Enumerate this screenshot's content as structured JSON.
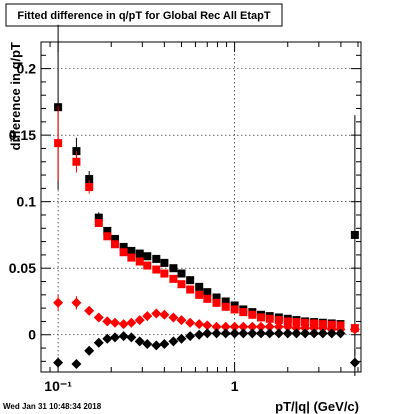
{
  "chart_data": {
    "type": "scatter",
    "title": "Fitted difference in q/pT for Global Rec All EtapT",
    "xlabel": "pT/|q| (GeV/c)",
    "ylabel": "difference in q/pT",
    "x_scale": "log",
    "xlim": [
      0.08,
      5.2
    ],
    "ylim": [
      -0.028,
      0.22
    ],
    "x_ticks": [
      {
        "v": 0.1,
        "label": "10⁻¹"
      },
      {
        "v": 1,
        "label": "1"
      }
    ],
    "y_ticks": [
      0,
      0.05,
      0.1,
      0.15,
      0.2
    ],
    "y_tick_labels": [
      "0",
      "0.05",
      "0.1",
      "0.15",
      "0.2"
    ],
    "grid": true,
    "timestamp": "Wed Jan 31 10:48:34 2018",
    "series": [
      {
        "color": "#000000",
        "marker": "square",
        "points": [
          {
            "x": 0.1,
            "y": 0.171,
            "err": 0.062
          },
          {
            "x": 0.127,
            "y": 0.138,
            "err": 0.01
          },
          {
            "x": 0.15,
            "y": 0.117,
            "err": 0.006
          },
          {
            "x": 0.17,
            "y": 0.088,
            "err": 0.004
          },
          {
            "x": 0.19,
            "y": 0.078
          },
          {
            "x": 0.21,
            "y": 0.072
          },
          {
            "x": 0.235,
            "y": 0.066
          },
          {
            "x": 0.26,
            "y": 0.063
          },
          {
            "x": 0.29,
            "y": 0.061
          },
          {
            "x": 0.32,
            "y": 0.059
          },
          {
            "x": 0.36,
            "y": 0.057
          },
          {
            "x": 0.4,
            "y": 0.054
          },
          {
            "x": 0.45,
            "y": 0.05
          },
          {
            "x": 0.5,
            "y": 0.046
          },
          {
            "x": 0.56,
            "y": 0.041
          },
          {
            "x": 0.63,
            "y": 0.036
          },
          {
            "x": 0.7,
            "y": 0.032
          },
          {
            "x": 0.79,
            "y": 0.028
          },
          {
            "x": 0.89,
            "y": 0.025
          },
          {
            "x": 1.0,
            "y": 0.022
          },
          {
            "x": 1.12,
            "y": 0.019
          },
          {
            "x": 1.26,
            "y": 0.017
          },
          {
            "x": 1.41,
            "y": 0.015
          },
          {
            "x": 1.58,
            "y": 0.014
          },
          {
            "x": 1.78,
            "y": 0.013
          },
          {
            "x": 2.0,
            "y": 0.012
          },
          {
            "x": 2.24,
            "y": 0.011
          },
          {
            "x": 2.51,
            "y": 0.01
          },
          {
            "x": 2.82,
            "y": 0.0095
          },
          {
            "x": 3.16,
            "y": 0.009
          },
          {
            "x": 3.55,
            "y": 0.0085
          },
          {
            "x": 3.98,
            "y": 0.008
          },
          {
            "x": 4.8,
            "y": 0.075,
            "err": 0.09
          }
        ]
      },
      {
        "color": "#ff0000",
        "marker": "square",
        "points": [
          {
            "x": 0.1,
            "y": 0.144,
            "err": 0.028
          },
          {
            "x": 0.127,
            "y": 0.13,
            "err": 0.008
          },
          {
            "x": 0.15,
            "y": 0.111,
            "err": 0.005
          },
          {
            "x": 0.17,
            "y": 0.084,
            "err": 0.003
          },
          {
            "x": 0.19,
            "y": 0.074
          },
          {
            "x": 0.21,
            "y": 0.068
          },
          {
            "x": 0.235,
            "y": 0.062
          },
          {
            "x": 0.26,
            "y": 0.058
          },
          {
            "x": 0.29,
            "y": 0.055
          },
          {
            "x": 0.32,
            "y": 0.052
          },
          {
            "x": 0.36,
            "y": 0.049
          },
          {
            "x": 0.4,
            "y": 0.046
          },
          {
            "x": 0.45,
            "y": 0.042
          },
          {
            "x": 0.5,
            "y": 0.038
          },
          {
            "x": 0.56,
            "y": 0.034
          },
          {
            "x": 0.63,
            "y": 0.03
          },
          {
            "x": 0.7,
            "y": 0.027
          },
          {
            "x": 0.79,
            "y": 0.024
          },
          {
            "x": 0.89,
            "y": 0.021
          },
          {
            "x": 1.0,
            "y": 0.019
          },
          {
            "x": 1.12,
            "y": 0.017
          },
          {
            "x": 1.26,
            "y": 0.015
          },
          {
            "x": 1.41,
            "y": 0.013
          },
          {
            "x": 1.58,
            "y": 0.012
          },
          {
            "x": 1.78,
            "y": 0.011
          },
          {
            "x": 2.0,
            "y": 0.01
          },
          {
            "x": 2.24,
            "y": 0.0095
          },
          {
            "x": 2.51,
            "y": 0.009
          },
          {
            "x": 2.82,
            "y": 0.0085
          },
          {
            "x": 3.16,
            "y": 0.008
          },
          {
            "x": 3.55,
            "y": 0.0075
          },
          {
            "x": 3.98,
            "y": 0.007
          },
          {
            "x": 4.8,
            "y": 0.005
          }
        ]
      },
      {
        "color": "#ff0000",
        "marker": "diamond",
        "points": [
          {
            "x": 0.1,
            "y": 0.024,
            "err": 0.006
          },
          {
            "x": 0.127,
            "y": 0.024,
            "err": 0.005
          },
          {
            "x": 0.15,
            "y": 0.018
          },
          {
            "x": 0.17,
            "y": 0.013
          },
          {
            "x": 0.19,
            "y": 0.01
          },
          {
            "x": 0.21,
            "y": 0.009
          },
          {
            "x": 0.235,
            "y": 0.008
          },
          {
            "x": 0.26,
            "y": 0.009
          },
          {
            "x": 0.29,
            "y": 0.011
          },
          {
            "x": 0.32,
            "y": 0.014
          },
          {
            "x": 0.36,
            "y": 0.016
          },
          {
            "x": 0.4,
            "y": 0.015
          },
          {
            "x": 0.45,
            "y": 0.013
          },
          {
            "x": 0.5,
            "y": 0.011
          },
          {
            "x": 0.56,
            "y": 0.009
          },
          {
            "x": 0.63,
            "y": 0.008
          },
          {
            "x": 0.7,
            "y": 0.007
          },
          {
            "x": 0.79,
            "y": 0.006
          },
          {
            "x": 0.89,
            "y": 0.006
          },
          {
            "x": 1.0,
            "y": 0.006
          },
          {
            "x": 1.12,
            "y": 0.006
          },
          {
            "x": 1.26,
            "y": 0.006
          },
          {
            "x": 1.41,
            "y": 0.006
          },
          {
            "x": 1.58,
            "y": 0.006
          },
          {
            "x": 1.78,
            "y": 0.006
          },
          {
            "x": 2.0,
            "y": 0.006
          },
          {
            "x": 2.24,
            "y": 0.005
          },
          {
            "x": 2.51,
            "y": 0.005
          },
          {
            "x": 2.82,
            "y": 0.005
          },
          {
            "x": 3.16,
            "y": 0.005
          },
          {
            "x": 3.55,
            "y": 0.004
          },
          {
            "x": 3.98,
            "y": 0.004
          },
          {
            "x": 4.8,
            "y": 0.004
          }
        ]
      },
      {
        "color": "#000000",
        "marker": "diamond",
        "points": [
          {
            "x": 0.1,
            "y": -0.021,
            "err": 0.004
          },
          {
            "x": 0.127,
            "y": -0.022,
            "err": 0.003
          },
          {
            "x": 0.15,
            "y": -0.012
          },
          {
            "x": 0.17,
            "y": -0.006
          },
          {
            "x": 0.19,
            "y": -0.003
          },
          {
            "x": 0.21,
            "y": -0.002
          },
          {
            "x": 0.235,
            "y": -0.001
          },
          {
            "x": 0.26,
            "y": -0.002
          },
          {
            "x": 0.29,
            "y": -0.005
          },
          {
            "x": 0.32,
            "y": -0.007
          },
          {
            "x": 0.36,
            "y": -0.008
          },
          {
            "x": 0.4,
            "y": -0.007
          },
          {
            "x": 0.45,
            "y": -0.005
          },
          {
            "x": 0.5,
            "y": -0.003
          },
          {
            "x": 0.56,
            "y": -0.001
          },
          {
            "x": 0.63,
            "y": 0.0
          },
          {
            "x": 0.7,
            "y": 0.001
          },
          {
            "x": 0.79,
            "y": 0.001
          },
          {
            "x": 0.89,
            "y": 0.001
          },
          {
            "x": 1.0,
            "y": 0.001
          },
          {
            "x": 1.12,
            "y": 0.001
          },
          {
            "x": 1.26,
            "y": 0.001
          },
          {
            "x": 1.41,
            "y": 0.001
          },
          {
            "x": 1.58,
            "y": 0.001
          },
          {
            "x": 1.78,
            "y": 0.001
          },
          {
            "x": 2.0,
            "y": 0.001
          },
          {
            "x": 2.24,
            "y": 0.001
          },
          {
            "x": 2.51,
            "y": 0.001
          },
          {
            "x": 2.82,
            "y": 0.001
          },
          {
            "x": 3.16,
            "y": 0.001
          },
          {
            "x": 3.55,
            "y": 0.001
          },
          {
            "x": 3.98,
            "y": 0.001
          },
          {
            "x": 4.8,
            "y": -0.021,
            "err": 0.01
          }
        ]
      }
    ]
  }
}
